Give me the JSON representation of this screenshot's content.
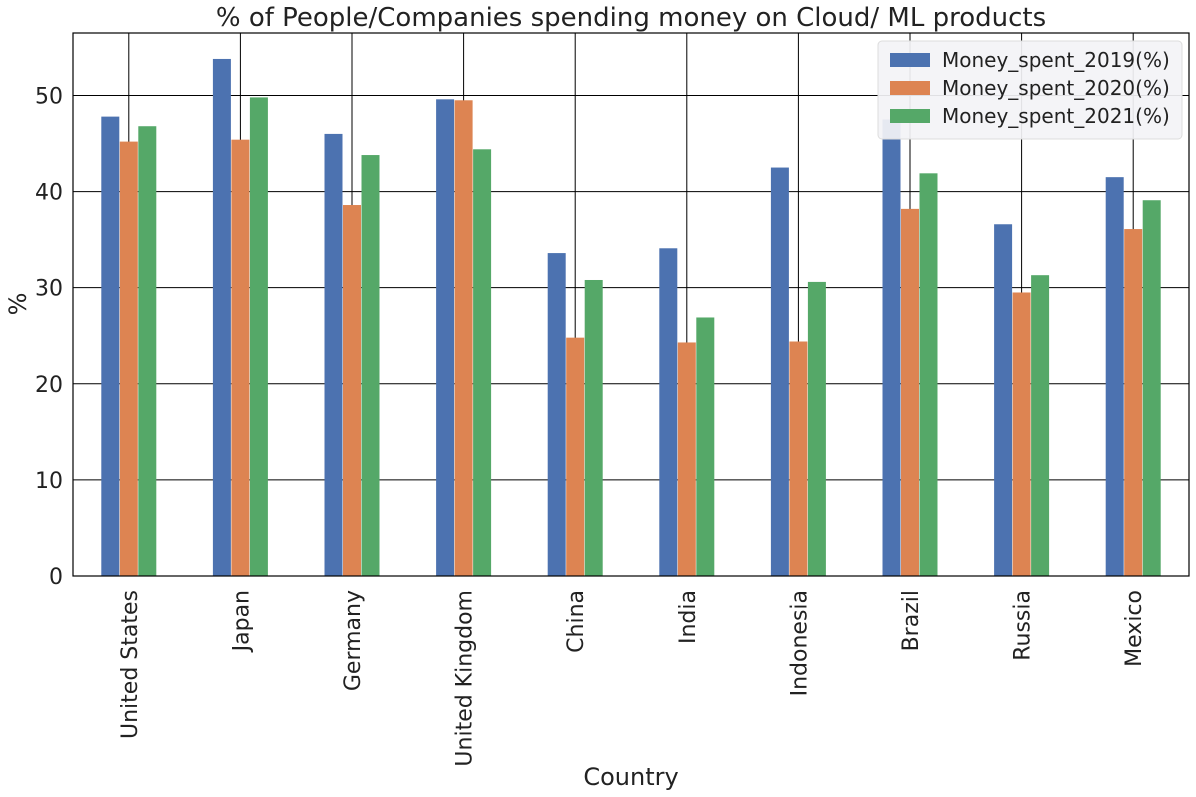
{
  "chart_data": {
    "type": "bar",
    "title": "% of People/Companies spending money on Cloud/ ML products",
    "xlabel": "Country",
    "ylabel": "%",
    "ylim": [
      0,
      56.5
    ],
    "yticks": [
      0,
      10,
      20,
      30,
      40,
      50
    ],
    "grid": true,
    "legend_position": "top-right",
    "categories": [
      "United States",
      "Japan",
      "Germany",
      "United Kingdom",
      "China",
      "India",
      "Indonesia",
      "Brazil",
      "Russia",
      "Mexico"
    ],
    "series": [
      {
        "name": "Money_spent_2019(%)",
        "color": "#4c72b0",
        "values": [
          47.8,
          53.8,
          46.0,
          49.6,
          33.6,
          34.1,
          42.5,
          47.5,
          36.6,
          41.5
        ]
      },
      {
        "name": "Money_spent_2020(%)",
        "color": "#dd8452",
        "values": [
          45.2,
          45.4,
          38.6,
          49.5,
          24.8,
          24.3,
          24.4,
          38.2,
          29.5,
          36.1
        ]
      },
      {
        "name": "Money_spent_2021(%)",
        "color": "#55a868",
        "values": [
          46.8,
          49.8,
          43.8,
          44.4,
          30.8,
          26.9,
          30.6,
          41.9,
          31.3,
          39.1
        ]
      }
    ]
  }
}
